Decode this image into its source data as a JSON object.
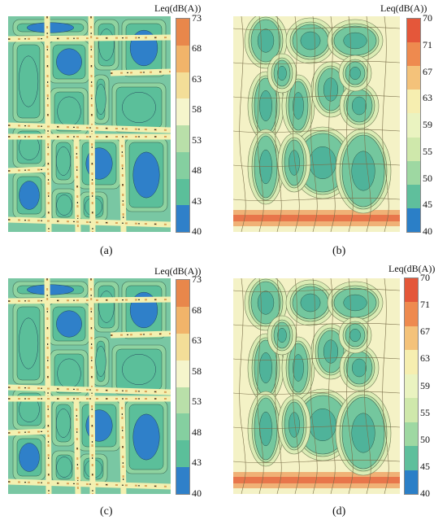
{
  "figure": {
    "panels": [
      {
        "id": "a",
        "caption": "(a)",
        "colorbar_title": "Leq(dB(A))",
        "ticks": [
          "73",
          "68",
          "63",
          "58",
          "53",
          "48",
          "43",
          "40"
        ],
        "colors": [
          "#e8874b",
          "#f1b46a",
          "#f3de98",
          "#f5f5cc",
          "#b9dfa9",
          "#85cfa0",
          "#5bbf9a",
          "#2f80c9"
        ],
        "map_style": "urban-grid"
      },
      {
        "id": "b",
        "caption": "(b)",
        "colorbar_title": "Leq(dB(A))",
        "ticks": [
          "70",
          "71",
          "67",
          "63",
          "59",
          "55",
          "50",
          "45",
          "40"
        ],
        "colors": [
          "#e4573a",
          "#ee8a4f",
          "#f4c27a",
          "#f6eeb0",
          "#eaf3c0",
          "#cfe8ab",
          "#9ed8a2",
          "#5fbf9c",
          "#2b7fc7"
        ],
        "map_style": "pale-grid"
      },
      {
        "id": "c",
        "caption": "(c)",
        "colorbar_title": "Leq(dB(A))",
        "ticks": [
          "73",
          "68",
          "63",
          "58",
          "53",
          "48",
          "43",
          "40"
        ],
        "colors": [
          "#e8874b",
          "#f1b46a",
          "#f3de98",
          "#f5f5cc",
          "#b9dfa9",
          "#85cfa0",
          "#5bbf9a",
          "#2f80c9"
        ],
        "map_style": "urban-grid"
      },
      {
        "id": "d",
        "caption": "(d)",
        "colorbar_title": "Leq(dB(A))",
        "ticks": [
          "70",
          "71",
          "67",
          "63",
          "59",
          "55",
          "50",
          "45",
          "40"
        ],
        "colors": [
          "#e4573a",
          "#ee8a4f",
          "#f4c27a",
          "#f6eeb0",
          "#eaf3c0",
          "#cfe8ab",
          "#9ed8a2",
          "#5fbf9c",
          "#2b7fc7"
        ],
        "map_style": "pale-grid"
      }
    ]
  }
}
